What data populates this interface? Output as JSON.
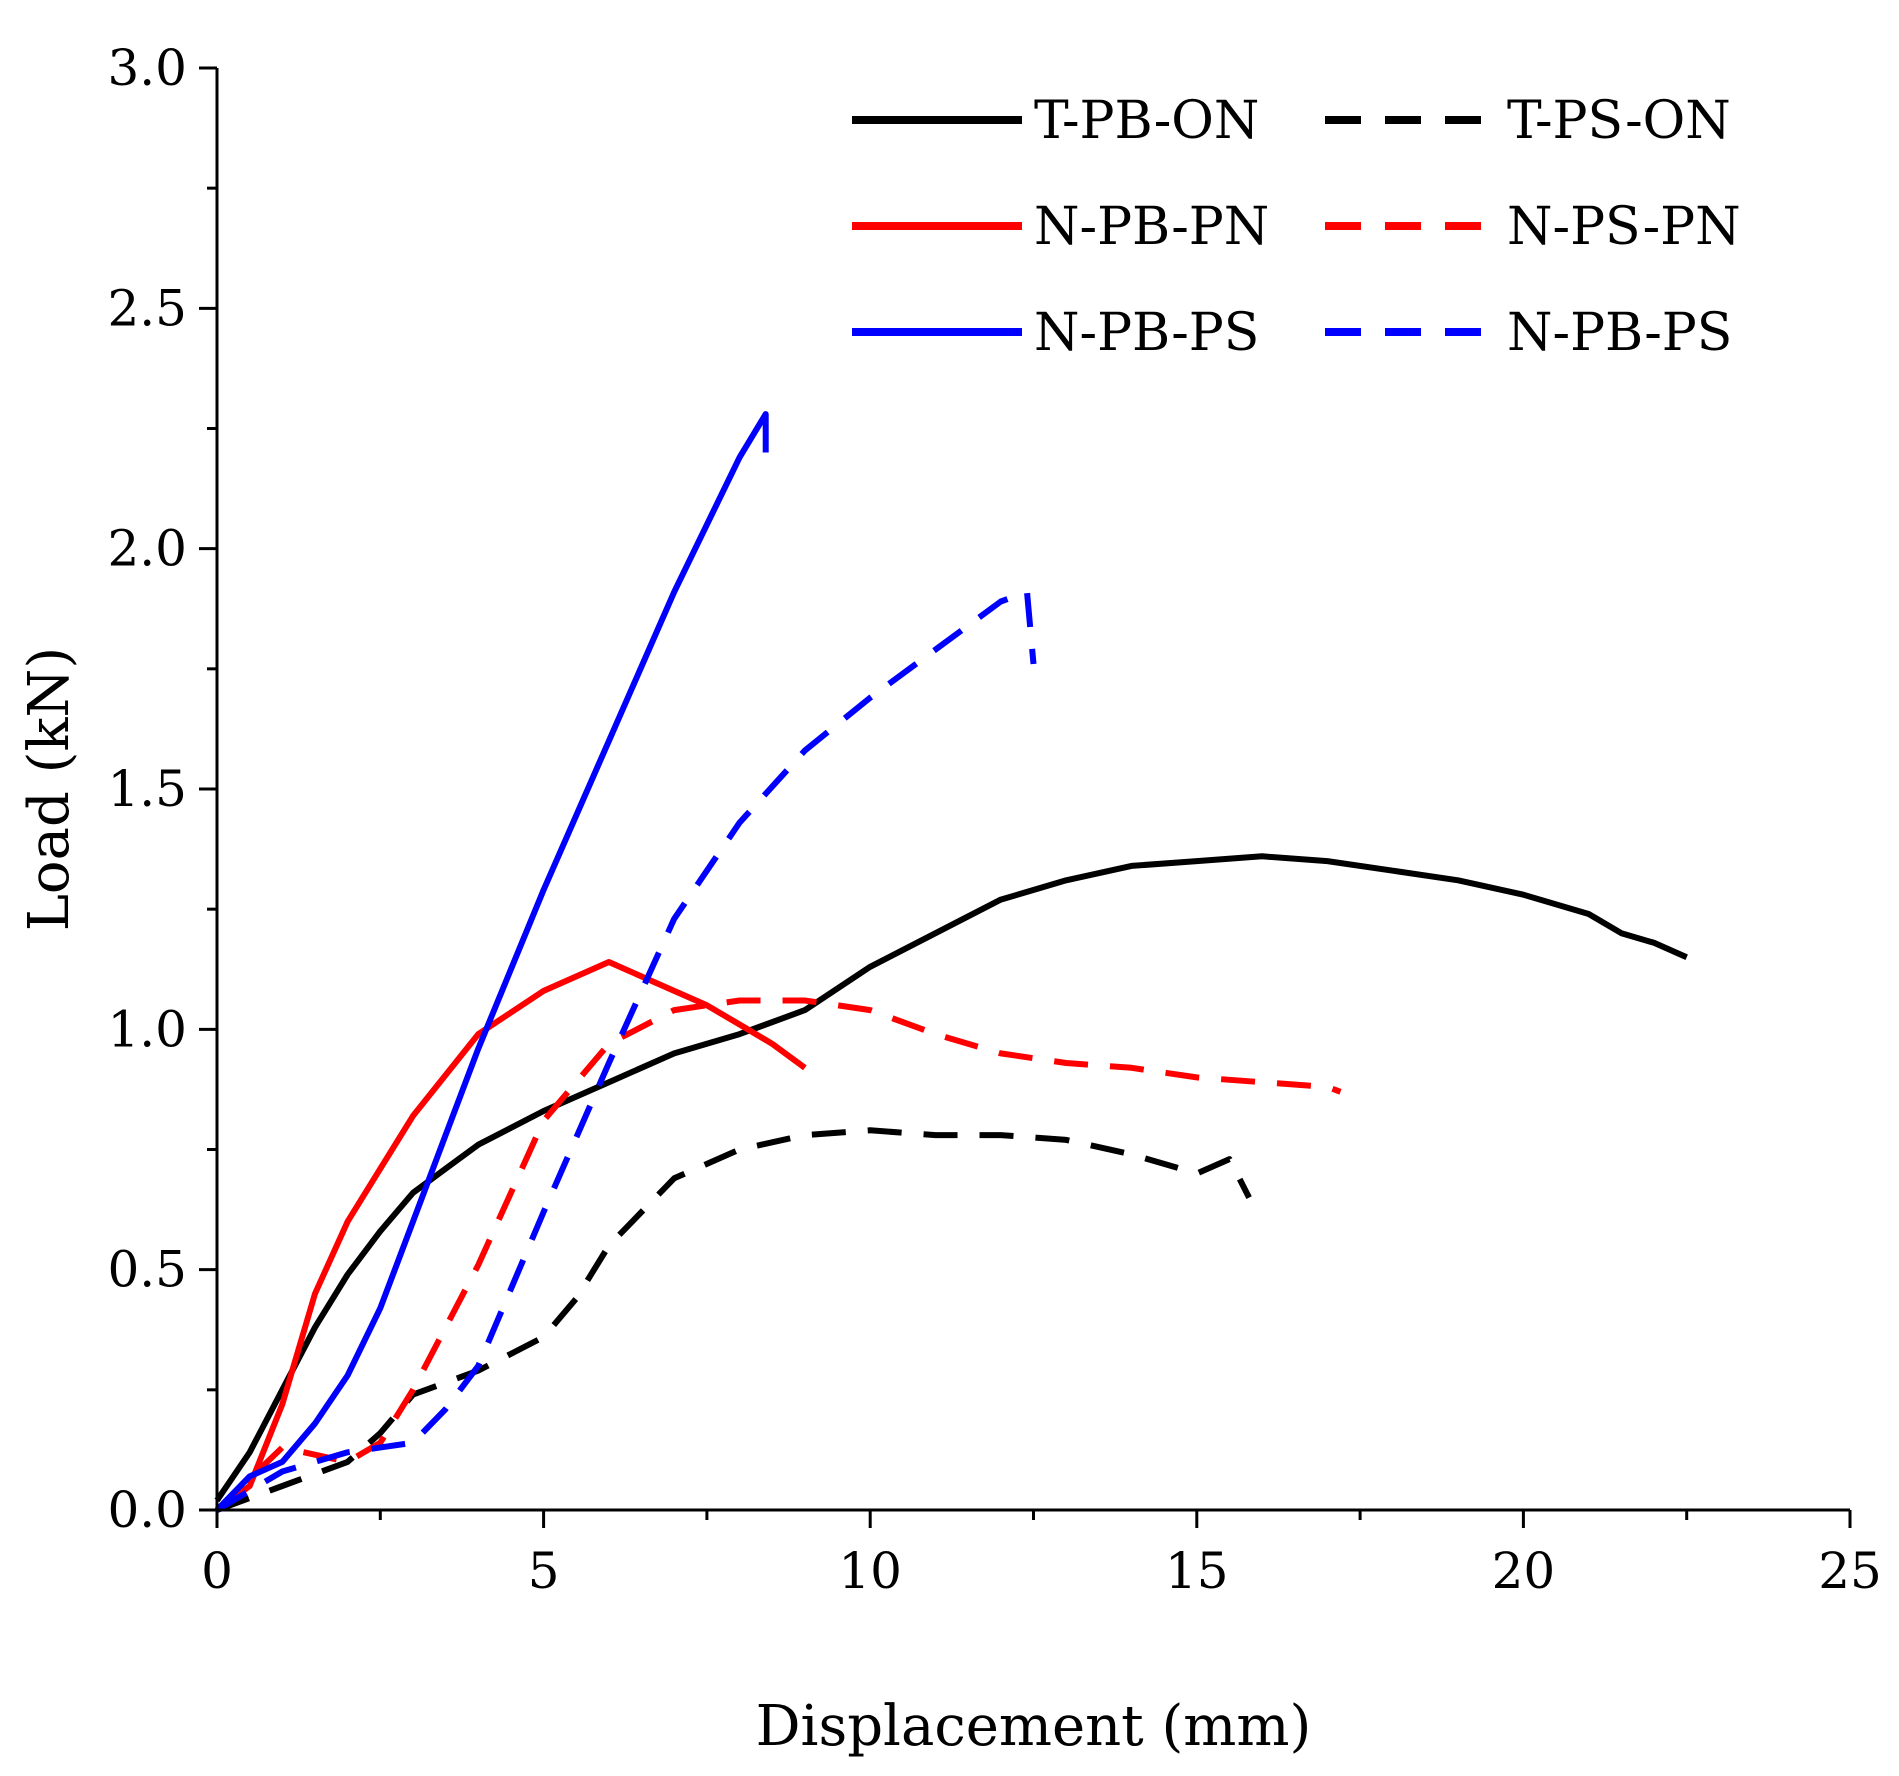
{
  "chart_data": {
    "type": "line",
    "title": "",
    "xlabel": "Displacement (mm)",
    "ylabel": "Load (kN)",
    "xlim": [
      0,
      25
    ],
    "ylim": [
      0,
      3.0
    ],
    "x_ticks": [
      0,
      5,
      10,
      15,
      20,
      25
    ],
    "x_tick_labels": [
      "0",
      "5",
      "10",
      "15",
      "20",
      "25"
    ],
    "y_ticks": [
      0,
      0.5,
      1.0,
      1.5,
      2.0,
      2.5,
      3.0
    ],
    "y_tick_labels": [
      "0.0",
      "0.5",
      "1.0",
      "1.5",
      "2.0",
      "2.5",
      "3.0"
    ],
    "grid": false,
    "legend_position": "top-right",
    "series": [
      {
        "name": "T-PB-ON",
        "color": "#000000",
        "dash": "solid",
        "points": [
          [
            0,
            0.02
          ],
          [
            0.5,
            0.12
          ],
          [
            1,
            0.25
          ],
          [
            1.5,
            0.38
          ],
          [
            2,
            0.49
          ],
          [
            2.5,
            0.58
          ],
          [
            3,
            0.66
          ],
          [
            3.5,
            0.71
          ],
          [
            4,
            0.76
          ],
          [
            5,
            0.83
          ],
          [
            6,
            0.89
          ],
          [
            7,
            0.95
          ],
          [
            8,
            0.99
          ],
          [
            9,
            1.04
          ],
          [
            10,
            1.13
          ],
          [
            11,
            1.2
          ],
          [
            12,
            1.27
          ],
          [
            13,
            1.31
          ],
          [
            14,
            1.34
          ],
          [
            15,
            1.35
          ],
          [
            16,
            1.36
          ],
          [
            17,
            1.35
          ],
          [
            18,
            1.33
          ],
          [
            19,
            1.31
          ],
          [
            20,
            1.28
          ],
          [
            21,
            1.24
          ],
          [
            21.5,
            1.2
          ],
          [
            22,
            1.18
          ],
          [
            22.5,
            1.15
          ]
        ]
      },
      {
        "name": "T-PS-ON",
        "color": "#000000",
        "dash": "dashed",
        "points": [
          [
            0,
            0
          ],
          [
            1,
            0.05
          ],
          [
            2,
            0.1
          ],
          [
            2.5,
            0.16
          ],
          [
            3,
            0.24
          ],
          [
            4,
            0.29
          ],
          [
            5,
            0.36
          ],
          [
            5.5,
            0.44
          ],
          [
            6,
            0.55
          ],
          [
            7,
            0.69
          ],
          [
            8,
            0.75
          ],
          [
            9,
            0.78
          ],
          [
            10,
            0.79
          ],
          [
            11,
            0.78
          ],
          [
            12,
            0.78
          ],
          [
            13,
            0.77
          ],
          [
            14,
            0.74
          ],
          [
            15,
            0.7
          ],
          [
            15.5,
            0.73
          ],
          [
            15.8,
            0.65
          ]
        ]
      },
      {
        "name": "N-PB-PN",
        "color": "#ff0000",
        "dash": "solid",
        "points": [
          [
            0,
            0
          ],
          [
            0.5,
            0.05
          ],
          [
            1,
            0.22
          ],
          [
            1.5,
            0.45
          ],
          [
            2,
            0.6
          ],
          [
            2.5,
            0.71
          ],
          [
            3,
            0.82
          ],
          [
            4,
            0.99
          ],
          [
            5,
            1.08
          ],
          [
            6,
            1.14
          ],
          [
            6.5,
            1.11
          ],
          [
            7,
            1.08
          ],
          [
            7.5,
            1.05
          ],
          [
            8,
            1.01
          ],
          [
            8.5,
            0.97
          ],
          [
            9,
            0.92
          ]
        ]
      },
      {
        "name": "N-PS-PN",
        "color": "#ff0000",
        "dash": "dashed",
        "points": [
          [
            0,
            0
          ],
          [
            1,
            0.13
          ],
          [
            2,
            0.1
          ],
          [
            2.5,
            0.14
          ],
          [
            3,
            0.25
          ],
          [
            4,
            0.51
          ],
          [
            5,
            0.81
          ],
          [
            6,
            0.97
          ],
          [
            7,
            1.04
          ],
          [
            8,
            1.06
          ],
          [
            9,
            1.06
          ],
          [
            10,
            1.04
          ],
          [
            11,
            0.99
          ],
          [
            12,
            0.95
          ],
          [
            13,
            0.93
          ],
          [
            14,
            0.92
          ],
          [
            15,
            0.9
          ],
          [
            16,
            0.89
          ],
          [
            17,
            0.88
          ],
          [
            17.2,
            0.87
          ]
        ]
      },
      {
        "name": "N-PB-PS",
        "color": "#0000ff",
        "dash": "solid",
        "points": [
          [
            0,
            0
          ],
          [
            0.5,
            0.07
          ],
          [
            1,
            0.1
          ],
          [
            1.5,
            0.18
          ],
          [
            2,
            0.28
          ],
          [
            2.5,
            0.42
          ],
          [
            3,
            0.6
          ],
          [
            3.5,
            0.78
          ],
          [
            4,
            0.96
          ],
          [
            5,
            1.29
          ],
          [
            6,
            1.6
          ],
          [
            7,
            1.91
          ],
          [
            8,
            2.19
          ],
          [
            8.4,
            2.28
          ],
          [
            8.4,
            2.2
          ]
        ]
      },
      {
        "name": "N-PB-PS",
        "color": "#0000ff",
        "dash": "dashed",
        "points": [
          [
            0,
            0
          ],
          [
            1,
            0.08
          ],
          [
            2,
            0.12
          ],
          [
            3,
            0.14
          ],
          [
            3.5,
            0.21
          ],
          [
            4,
            0.3
          ],
          [
            5,
            0.62
          ],
          [
            6,
            0.93
          ],
          [
            7,
            1.23
          ],
          [
            8,
            1.43
          ],
          [
            9,
            1.58
          ],
          [
            10,
            1.69
          ],
          [
            11,
            1.79
          ],
          [
            12,
            1.89
          ],
          [
            12.4,
            1.91
          ],
          [
            12.5,
            1.76
          ]
        ]
      }
    ]
  }
}
